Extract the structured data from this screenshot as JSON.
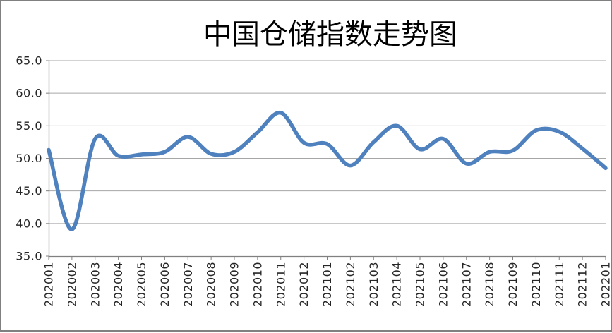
{
  "chart_data": {
    "type": "line",
    "title": "中国仓储指数走势图",
    "categories": [
      "202001",
      "202002",
      "202003",
      "202004",
      "202005",
      "202006",
      "202007",
      "202008",
      "202009",
      "202010",
      "202011",
      "202012",
      "202101",
      "202102",
      "202103",
      "202104",
      "202105",
      "202106",
      "202107",
      "202108",
      "202109",
      "202110",
      "202111",
      "202112",
      "202201"
    ],
    "values": [
      51.3,
      39.1,
      53.0,
      50.4,
      50.6,
      51.0,
      53.3,
      50.7,
      51.0,
      54.0,
      57.0,
      52.4,
      52.2,
      48.9,
      52.5,
      55.0,
      51.4,
      53.0,
      49.2,
      51.0,
      51.2,
      54.3,
      54.1,
      51.5,
      48.5
    ],
    "xlabel": "",
    "ylabel": "",
    "ylim": [
      35.0,
      65.0
    ],
    "ytick_interval": 5.0,
    "ytick_labels": [
      "65.0",
      "60.0",
      "55.0",
      "50.0",
      "45.0",
      "40.0",
      "35.0"
    ],
    "x_label_rotation_degrees": 90,
    "grid": "horizontal-major",
    "legend": "none",
    "smoothed_line": true,
    "colors": {
      "line": "#4E81BD",
      "gridline": "#A6A6A6",
      "axis": "#808080",
      "title_text": "#000000",
      "tick_text": "#262626",
      "background": "#FFFFFF",
      "frame_border": "#808080"
    }
  }
}
